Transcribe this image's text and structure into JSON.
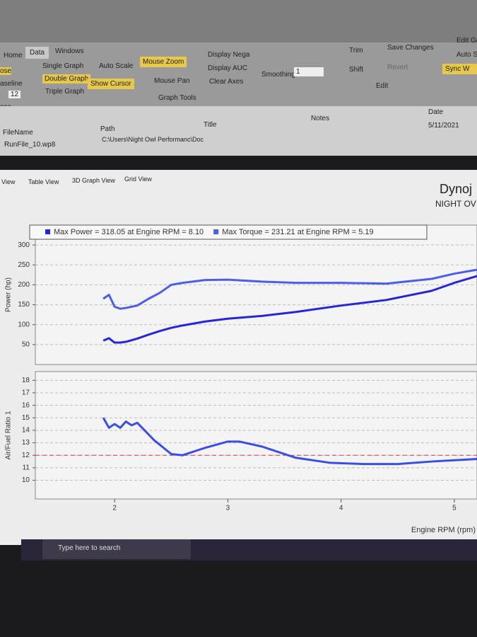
{
  "ribbon": {
    "tabs": [
      "Home",
      "Data",
      "Windows"
    ],
    "left_edge": [
      "ose",
      "aseline",
      "12",
      "ose"
    ],
    "buttons": [
      "Single Graph",
      "Double Graph",
      "Triple Graph",
      "Auto Scale",
      "Show Cursor",
      "Mouse Zoom",
      "Mouse Pan",
      "Display Nega",
      "Display AUC",
      "Clear Axes"
    ],
    "group": "Graph Tools",
    "smoothing_label": "Smoothing:",
    "smoothing_value": "1",
    "edit_buttons": [
      "Trim",
      "Shift",
      "Save Changes",
      "Revert"
    ],
    "edit_group": "Edit",
    "right_edge": [
      "Edit Gr",
      "Auto S",
      "Sync W"
    ]
  },
  "file_table": {
    "headers": [
      "FileName",
      "Path",
      "Title",
      "Notes",
      "Date"
    ],
    "row": {
      "file": "RunFile_10.wp8",
      "path": "C:\\Users\\Night Owl Performanc\\Doc",
      "date": "5/11/2021"
    }
  },
  "view_tabs": [
    "View",
    "Table View",
    "3D Graph View",
    "Grid View"
  ],
  "header": {
    "title": "Dynoj",
    "subtitle": "NIGHT OV"
  },
  "chart_data": [
    {
      "type": "line",
      "ylabel": "Power (hp)",
      "x": [
        1.9,
        1.95,
        2.0,
        2.05,
        2.1,
        2.2,
        2.3,
        2.4,
        2.5,
        2.6,
        2.8,
        3.0,
        3.3,
        3.6,
        4.0,
        4.4,
        4.8,
        5.0,
        5.2
      ],
      "xlim": [
        1.3,
        5.2
      ],
      "ylim": [
        0,
        350
      ],
      "yticks": [
        50,
        100,
        150,
        200,
        250,
        300
      ],
      "grid": true,
      "series": [
        {
          "name": "Max Power = 318.05 at Engine RPM = 8.10",
          "color": "#2626d6",
          "values": [
            60,
            66,
            55,
            55,
            57,
            65,
            75,
            84,
            92,
            98,
            108,
            115,
            122,
            132,
            148,
            162,
            185,
            205,
            222
          ]
        },
        {
          "name": "Max Torque = 231.21 at Engine RPM = 5.19",
          "color": "#4a5ee6",
          "values": [
            165,
            175,
            145,
            140,
            142,
            148,
            165,
            180,
            200,
            205,
            212,
            213,
            208,
            205,
            205,
            203,
            215,
            228,
            238
          ]
        }
      ]
    },
    {
      "type": "line",
      "ylabel": "Air/Fuel Ratio 1",
      "xlabel": "Engine RPM (rpm)",
      "x": [
        1.9,
        1.95,
        2.0,
        2.05,
        2.1,
        2.15,
        2.2,
        2.35,
        2.5,
        2.6,
        2.8,
        3.0,
        3.1,
        3.3,
        3.6,
        3.9,
        4.2,
        4.5,
        4.8,
        5.0,
        5.2
      ],
      "xlim": [
        1.3,
        5.2
      ],
      "xticks": [
        2,
        3,
        4,
        5
      ],
      "ylim": [
        8.5,
        18.7
      ],
      "yticks": [
        10,
        11,
        12,
        13,
        14,
        15,
        16,
        17,
        18
      ],
      "grid": true,
      "reference_line": 12,
      "reference_color": "#d04040",
      "series": [
        {
          "color": "#3a4ee0",
          "values": [
            15,
            14.2,
            14.5,
            14.2,
            14.7,
            14.4,
            14.6,
            13.2,
            12.1,
            12.0,
            12.6,
            13.1,
            13.1,
            12.7,
            11.8,
            11.4,
            11.3,
            11.3,
            11.5,
            11.6,
            11.7
          ]
        }
      ]
    }
  ],
  "taskbar": {
    "search": "Type here to search"
  }
}
